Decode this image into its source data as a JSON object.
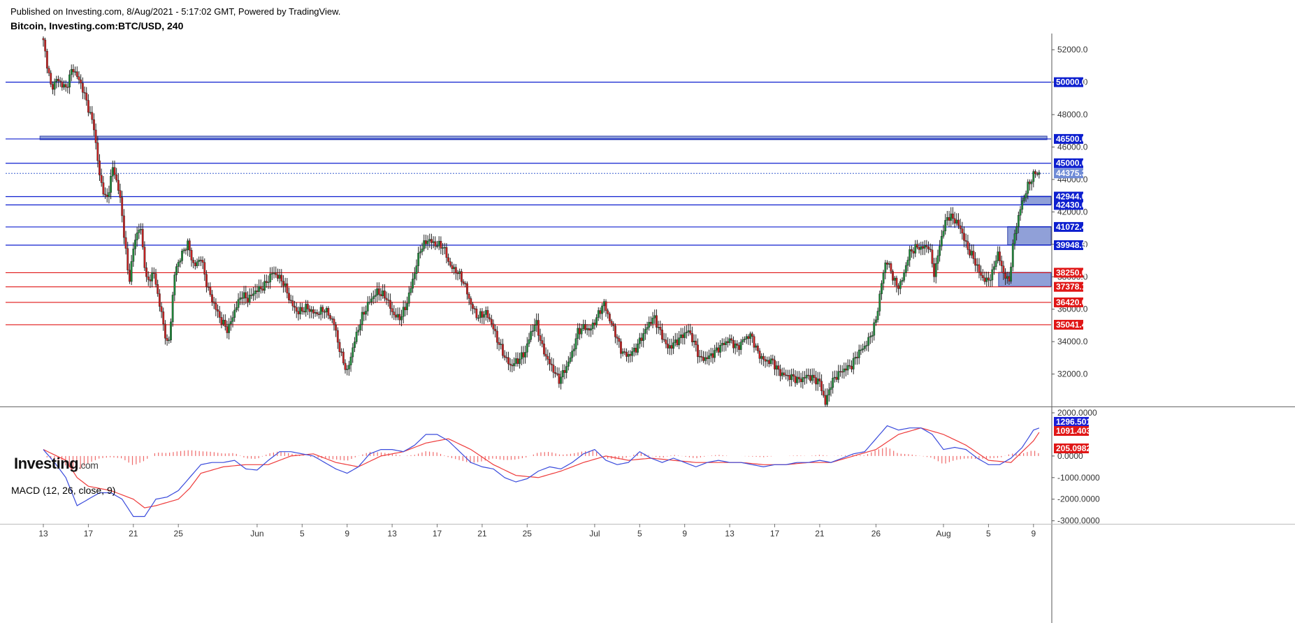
{
  "header": {
    "publish_text": "Published on Investing.com, 8/Aug/2021 - 5:17:02 GMT, Powered by TradingView.",
    "title": "Bitcoin, Investing.com:BTC/USD, 240"
  },
  "logo": {
    "main": "Investing",
    "suffix": ".com"
  },
  "colors": {
    "blue_level": "#0d1fcf",
    "red_level": "#e01616",
    "bull": "#1e8a3a",
    "bear": "#c82020",
    "zone_fill": "#7d8fd1",
    "macd_line": "#3a4bdc",
    "signal_line": "#ee3b3b",
    "hist": "#ef6a6a"
  },
  "chart_data": [
    {
      "type": "candlestick",
      "title": "Bitcoin, Investing.com:BTC/USD, 240",
      "ylim": [
        30000,
        53000
      ],
      "y_ticks": [
        "52000.0",
        "50000.0",
        "48000.0",
        "46000.0",
        "44000.0",
        "42000.0",
        "40000.0",
        "38000.0",
        "36000.0",
        "34000.0",
        "32000.0"
      ],
      "x_ticks": [
        "13",
        "17",
        "21",
        "25",
        "Jun",
        "5",
        "9",
        "13",
        "17",
        "21",
        "25",
        "Jul",
        "5",
        "9",
        "13",
        "17",
        "21",
        "26",
        "Aug",
        "5",
        "9"
      ],
      "x_tick_days": [
        0,
        4,
        8,
        12,
        19,
        23,
        27,
        31,
        35,
        39,
        43,
        49,
        53,
        57,
        61,
        65,
        69,
        74,
        80,
        84,
        88
      ],
      "x_range_days": [
        0,
        90
      ],
      "price_path": [
        [
          0,
          52500
        ],
        [
          0.7,
          49600
        ],
        [
          1.2,
          50200
        ],
        [
          2,
          49600
        ],
        [
          2.6,
          50900
        ],
        [
          3.4,
          49800
        ],
        [
          4,
          48400
        ],
        [
          4.5,
          47200
        ],
        [
          5,
          44200
        ],
        [
          5.6,
          42600
        ],
        [
          6.2,
          44800
        ],
        [
          6.8,
          43000
        ],
        [
          7.3,
          39800
        ],
        [
          7.6,
          37600
        ],
        [
          8.1,
          40200
        ],
        [
          8.6,
          41200
        ],
        [
          9.2,
          37600
        ],
        [
          9.8,
          38300
        ],
        [
          10.6,
          35300
        ],
        [
          11.1,
          33500
        ],
        [
          11.7,
          38400
        ],
        [
          12.2,
          39200
        ],
        [
          12.8,
          40100
        ],
        [
          13.4,
          38600
        ],
        [
          14,
          39200
        ],
        [
          14.6,
          37300
        ],
        [
          15.1,
          36400
        ],
        [
          15.8,
          35300
        ],
        [
          16.4,
          34700
        ],
        [
          17,
          35900
        ],
        [
          17.6,
          36900
        ],
        [
          18.2,
          36600
        ],
        [
          18.8,
          37100
        ],
        [
          19.6,
          37400
        ],
        [
          20.4,
          38300
        ],
        [
          21.3,
          37700
        ],
        [
          22,
          36400
        ],
        [
          22.6,
          35800
        ],
        [
          23.4,
          36100
        ],
        [
          24.2,
          35700
        ],
        [
          25,
          36000
        ],
        [
          25.8,
          35200
        ],
        [
          26.4,
          33300
        ],
        [
          27,
          32100
        ],
        [
          27.6,
          33900
        ],
        [
          28.3,
          35500
        ],
        [
          29,
          36500
        ],
        [
          29.7,
          37100
        ],
        [
          30.5,
          36700
        ],
        [
          31,
          35800
        ],
        [
          31.6,
          35400
        ],
        [
          32.2,
          36100
        ],
        [
          32.8,
          37700
        ],
        [
          33.5,
          39700
        ],
        [
          34.2,
          40300
        ],
        [
          34.8,
          40000
        ],
        [
          35.5,
          39900
        ],
        [
          36.2,
          38600
        ],
        [
          36.8,
          38300
        ],
        [
          37.4,
          37600
        ],
        [
          38,
          36300
        ],
        [
          38.6,
          35500
        ],
        [
          39.3,
          35800
        ],
        [
          39.8,
          35200
        ],
        [
          40.3,
          34200
        ],
        [
          40.9,
          33200
        ],
        [
          41.5,
          32500
        ],
        [
          42.1,
          32800
        ],
        [
          42.8,
          33300
        ],
        [
          43.3,
          34500
        ],
        [
          43.8,
          35200
        ],
        [
          44.3,
          33700
        ],
        [
          44.8,
          32900
        ],
        [
          45.3,
          32300
        ],
        [
          45.8,
          31600
        ],
        [
          46.4,
          32300
        ],
        [
          47,
          33300
        ],
        [
          47.5,
          34600
        ],
        [
          48,
          34900
        ],
        [
          48.6,
          34700
        ],
        [
          49.2,
          35500
        ],
        [
          49.8,
          36400
        ],
        [
          50.3,
          35400
        ],
        [
          50.8,
          34600
        ],
        [
          51.3,
          33500
        ],
        [
          51.9,
          33100
        ],
        [
          52.6,
          33500
        ],
        [
          53.2,
          34300
        ],
        [
          53.8,
          35100
        ],
        [
          54.3,
          35500
        ],
        [
          54.8,
          34600
        ],
        [
          55.5,
          33600
        ],
        [
          56.1,
          33900
        ],
        [
          56.7,
          34300
        ],
        [
          57.3,
          34700
        ],
        [
          57.8,
          34000
        ],
        [
          58.4,
          32900
        ],
        [
          59,
          33000
        ],
        [
          59.6,
          33300
        ],
        [
          60.3,
          33800
        ],
        [
          61,
          34100
        ],
        [
          61.7,
          33600
        ],
        [
          62.3,
          34200
        ],
        [
          62.9,
          34400
        ],
        [
          63.5,
          33300
        ],
        [
          64.1,
          32800
        ],
        [
          64.8,
          32800
        ],
        [
          65.4,
          32100
        ],
        [
          66,
          31900
        ],
        [
          66.6,
          31800
        ],
        [
          67.2,
          31600
        ],
        [
          67.9,
          31900
        ],
        [
          68.5,
          31700
        ],
        [
          69,
          31500
        ],
        [
          69.5,
          30200
        ],
        [
          70,
          31400
        ],
        [
          70.6,
          32000
        ],
        [
          71.2,
          32300
        ],
        [
          71.8,
          32500
        ],
        [
          72.4,
          33300
        ],
        [
          73,
          33700
        ],
        [
          73.5,
          34300
        ],
        [
          74,
          35300
        ],
        [
          74.5,
          37600
        ],
        [
          74.9,
          39100
        ],
        [
          75.4,
          38200
        ],
        [
          75.9,
          37300
        ],
        [
          76.4,
          37900
        ],
        [
          76.9,
          39400
        ],
        [
          77.5,
          39800
        ],
        [
          78.1,
          39800
        ],
        [
          78.7,
          39900
        ],
        [
          79.2,
          38100
        ],
        [
          79.7,
          40100
        ],
        [
          80.3,
          41700
        ],
        [
          80.9,
          41600
        ],
        [
          81.5,
          41000
        ],
        [
          82.1,
          39800
        ],
        [
          82.7,
          39100
        ],
        [
          83.3,
          38100
        ],
        [
          83.8,
          37700
        ],
        [
          84.3,
          38100
        ],
        [
          84.8,
          39500
        ],
        [
          85.3,
          38300
        ],
        [
          85.8,
          37600
        ],
        [
          86.3,
          40600
        ],
        [
          86.9,
          42400
        ],
        [
          87.5,
          43600
        ],
        [
          88.1,
          44400
        ],
        [
          88.5,
          44375
        ]
      ],
      "series_note": "",
      "levels": [
        {
          "value": 50000.0,
          "label": "50000.0",
          "color": "blue"
        },
        {
          "value": 46500.0,
          "label": "46500.0",
          "color": "blue"
        },
        {
          "value": 45000.0,
          "label": "45000.0",
          "color": "blue"
        },
        {
          "value": 44375.3,
          "label": "44375.3",
          "color": "current"
        },
        {
          "value": 42944.0,
          "label": "42944.0",
          "color": "blue"
        },
        {
          "value": 42430.0,
          "label": "42430.0",
          "color": "blue"
        },
        {
          "value": 41072.4,
          "label": "41072.4",
          "color": "blue"
        },
        {
          "value": 39948.5,
          "label": "39948.5",
          "color": "blue"
        },
        {
          "value": 38250.0,
          "label": "38250.0",
          "color": "red"
        },
        {
          "value": 37378.1,
          "label": "37378.1",
          "color": "red"
        },
        {
          "value": 36420.0,
          "label": "36420.0",
          "color": "red"
        },
        {
          "value": 35041.4,
          "label": "35041.4",
          "color": "red"
        }
      ],
      "zones": [
        {
          "from_day": -0.3,
          "to_day": 89.2,
          "low": 46500,
          "high": 46650
        },
        {
          "from_day": 86.9,
          "to_day": 90,
          "low": 42430,
          "high": 42944
        },
        {
          "from_day": 85.7,
          "to_day": 90,
          "low": 39948.5,
          "high": 41072.4
        },
        {
          "from_day": 84.9,
          "to_day": 90,
          "low": 37378.1,
          "high": 38250
        }
      ]
    },
    {
      "type": "macd",
      "title": "MACD (12, 26, close, 9)",
      "ylim": [
        -3000,
        2000
      ],
      "y_ticks": [
        "2000.0000",
        "0.0000",
        "-1000.0000",
        "-2000.0000",
        "-3000.0000"
      ],
      "macd_value_label": "1296.5018",
      "signal_value_label": "1091.4035",
      "hist_value_label": "205.0982",
      "macd_path": [
        [
          0,
          300
        ],
        [
          1,
          -300
        ],
        [
          2,
          -1000
        ],
        [
          3,
          -2300
        ],
        [
          4,
          -2000
        ],
        [
          5,
          -1700
        ],
        [
          6,
          -1700
        ],
        [
          7,
          -2000
        ],
        [
          8,
          -2800
        ],
        [
          9,
          -2800
        ],
        [
          10,
          -2000
        ],
        [
          11,
          -1900
        ],
        [
          12,
          -1600
        ],
        [
          13,
          -1000
        ],
        [
          14,
          -400
        ],
        [
          15,
          -300
        ],
        [
          16,
          -300
        ],
        [
          17,
          -200
        ],
        [
          18,
          -600
        ],
        [
          19,
          -650
        ],
        [
          20,
          -200
        ],
        [
          21,
          200
        ],
        [
          22,
          200
        ],
        [
          23,
          100
        ],
        [
          24,
          0
        ],
        [
          25,
          -300
        ],
        [
          26,
          -600
        ],
        [
          27,
          -800
        ],
        [
          28,
          -500
        ],
        [
          29,
          100
        ],
        [
          30,
          300
        ],
        [
          31,
          300
        ],
        [
          32,
          200
        ],
        [
          33,
          500
        ],
        [
          34,
          1000
        ],
        [
          35,
          1000
        ],
        [
          36,
          700
        ],
        [
          37,
          200
        ],
        [
          38,
          -300
        ],
        [
          39,
          -500
        ],
        [
          40,
          -600
        ],
        [
          41,
          -1000
        ],
        [
          42,
          -1200
        ],
        [
          43,
          -1050
        ],
        [
          44,
          -700
        ],
        [
          45,
          -500
        ],
        [
          46,
          -600
        ],
        [
          47,
          -300
        ],
        [
          48,
          100
        ],
        [
          49,
          300
        ],
        [
          50,
          -200
        ],
        [
          51,
          -400
        ],
        [
          52,
          -300
        ],
        [
          53,
          200
        ],
        [
          54,
          -100
        ],
        [
          55,
          -300
        ],
        [
          56,
          -100
        ],
        [
          57,
          -300
        ],
        [
          58,
          -500
        ],
        [
          59,
          -300
        ],
        [
          60,
          -200
        ],
        [
          61,
          -300
        ],
        [
          62,
          -300
        ],
        [
          63,
          -400
        ],
        [
          64,
          -500
        ],
        [
          65,
          -400
        ],
        [
          66,
          -400
        ],
        [
          67,
          -300
        ],
        [
          68,
          -300
        ],
        [
          69,
          -200
        ],
        [
          70,
          -300
        ],
        [
          71,
          -100
        ],
        [
          72,
          100
        ],
        [
          73,
          200
        ],
        [
          74,
          800
        ],
        [
          75,
          1400
        ],
        [
          76,
          1200
        ],
        [
          77,
          1300
        ],
        [
          78,
          1300
        ],
        [
          79,
          1000
        ],
        [
          80,
          300
        ],
        [
          81,
          400
        ],
        [
          82,
          300
        ],
        [
          83,
          -100
        ],
        [
          84,
          -400
        ],
        [
          85,
          -400
        ],
        [
          86,
          -100
        ],
        [
          87,
          400
        ],
        [
          88,
          1200
        ],
        [
          88.5,
          1296.5
        ]
      ],
      "signal_path": [
        [
          0,
          300
        ],
        [
          2,
          -200
        ],
        [
          3,
          -1000
        ],
        [
          4,
          -1400
        ],
        [
          6,
          -1600
        ],
        [
          8,
          -2000
        ],
        [
          9,
          -2400
        ],
        [
          10,
          -2300
        ],
        [
          12,
          -2000
        ],
        [
          13,
          -1500
        ],
        [
          14,
          -800
        ],
        [
          16,
          -500
        ],
        [
          18,
          -400
        ],
        [
          20,
          -400
        ],
        [
          22,
          0
        ],
        [
          24,
          100
        ],
        [
          26,
          -300
        ],
        [
          28,
          -500
        ],
        [
          30,
          0
        ],
        [
          32,
          200
        ],
        [
          34,
          600
        ],
        [
          36,
          800
        ],
        [
          38,
          300
        ],
        [
          40,
          -400
        ],
        [
          42,
          -900
        ],
        [
          44,
          -1000
        ],
        [
          46,
          -700
        ],
        [
          48,
          -300
        ],
        [
          50,
          0
        ],
        [
          52,
          -200
        ],
        [
          54,
          -100
        ],
        [
          56,
          -200
        ],
        [
          58,
          -300
        ],
        [
          60,
          -300
        ],
        [
          62,
          -300
        ],
        [
          64,
          -400
        ],
        [
          66,
          -400
        ],
        [
          68,
          -300
        ],
        [
          70,
          -300
        ],
        [
          72,
          0
        ],
        [
          74,
          300
        ],
        [
          76,
          1000
        ],
        [
          78,
          1300
        ],
        [
          80,
          1000
        ],
        [
          82,
          500
        ],
        [
          84,
          -200
        ],
        [
          86,
          -300
        ],
        [
          88,
          700
        ],
        [
          88.5,
          1091.4
        ]
      ]
    }
  ]
}
